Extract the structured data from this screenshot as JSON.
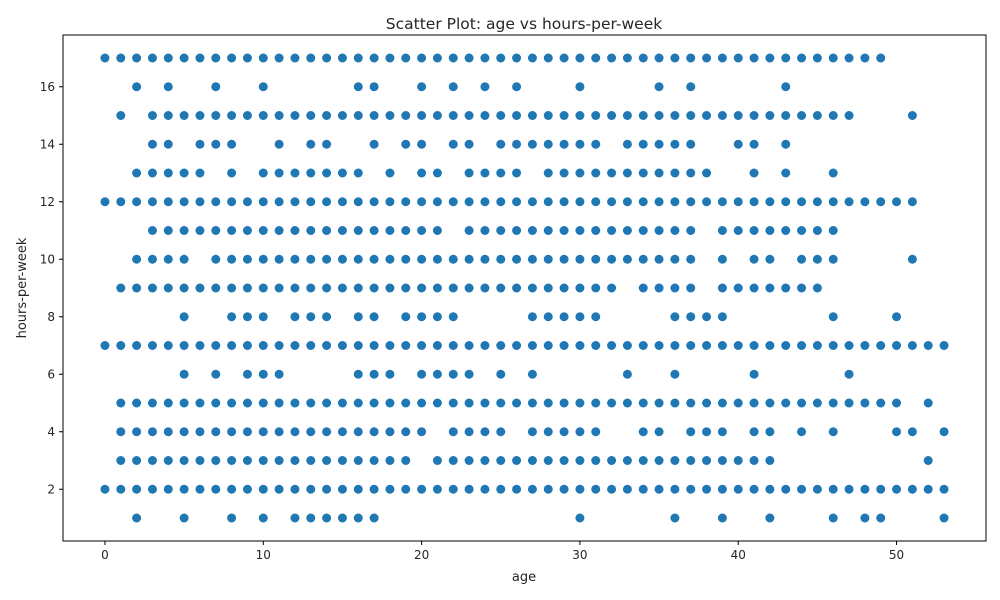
{
  "chart_data": {
    "type": "scatter",
    "title": "Scatter Plot: age vs hours-per-week",
    "xlabel": "age",
    "ylabel": "hours-per-week",
    "xlim": [
      -2.65,
      55.65
    ],
    "ylim": [
      0.2,
      17.8
    ],
    "xticks": [
      0,
      10,
      20,
      30,
      40,
      50
    ],
    "yticks": [
      2,
      4,
      6,
      8,
      10,
      12,
      14,
      16
    ],
    "grid": false,
    "legend": "none",
    "marker_color": "#1f77b4",
    "points": [
      {
        "y": 17,
        "x": [
          0,
          1,
          2,
          3,
          4,
          5,
          6,
          7,
          8,
          9,
          10,
          11,
          12,
          13,
          14,
          15,
          16,
          17,
          18,
          19,
          20,
          21,
          22,
          23,
          24,
          25,
          26,
          27,
          28,
          29,
          30,
          31,
          32,
          33,
          34,
          35,
          36,
          37,
          38,
          39,
          40,
          41,
          42,
          43,
          44,
          45,
          46,
          47,
          48,
          49
        ]
      },
      {
        "y": 16,
        "x": [
          2,
          4,
          7,
          10,
          16,
          17,
          20,
          22,
          24,
          26,
          30,
          35,
          37,
          43
        ]
      },
      {
        "y": 15,
        "x": [
          1,
          3,
          4,
          5,
          6,
          7,
          8,
          9,
          10,
          11,
          12,
          13,
          14,
          15,
          16,
          17,
          18,
          19,
          20,
          21,
          22,
          23,
          24,
          25,
          26,
          27,
          28,
          29,
          30,
          31,
          32,
          33,
          34,
          35,
          36,
          37,
          38,
          39,
          40,
          41,
          42,
          43,
          44,
          45,
          46,
          47,
          51
        ]
      },
      {
        "y": 14,
        "x": [
          3,
          4,
          6,
          7,
          8,
          11,
          13,
          14,
          17,
          19,
          20,
          22,
          23,
          25,
          26,
          27,
          28,
          29,
          30,
          31,
          33,
          34,
          35,
          36,
          37,
          40,
          41,
          43
        ]
      },
      {
        "y": 13,
        "x": [
          2,
          3,
          4,
          5,
          6,
          8,
          10,
          11,
          12,
          13,
          14,
          15,
          16,
          18,
          20,
          21,
          23,
          24,
          25,
          26,
          28,
          29,
          30,
          31,
          32,
          33,
          34,
          35,
          36,
          37,
          38,
          41,
          43,
          46
        ]
      },
      {
        "y": 12,
        "x": [
          0,
          1,
          2,
          3,
          4,
          5,
          6,
          7,
          8,
          9,
          10,
          11,
          12,
          13,
          14,
          15,
          16,
          17,
          18,
          19,
          20,
          21,
          22,
          23,
          24,
          25,
          26,
          27,
          28,
          29,
          30,
          31,
          32,
          33,
          34,
          35,
          36,
          37,
          38,
          39,
          40,
          41,
          42,
          43,
          44,
          45,
          46,
          47,
          48,
          49,
          50,
          51
        ]
      },
      {
        "y": 11,
        "x": [
          3,
          4,
          5,
          6,
          7,
          8,
          9,
          10,
          11,
          12,
          13,
          14,
          15,
          16,
          17,
          18,
          19,
          20,
          21,
          23,
          24,
          25,
          26,
          27,
          28,
          29,
          30,
          31,
          32,
          33,
          34,
          35,
          36,
          37,
          39,
          40,
          41,
          42,
          43,
          44,
          45,
          46
        ]
      },
      {
        "y": 10,
        "x": [
          2,
          3,
          4,
          5,
          7,
          8,
          9,
          10,
          11,
          12,
          13,
          14,
          15,
          16,
          17,
          18,
          19,
          20,
          21,
          22,
          23,
          24,
          25,
          26,
          27,
          28,
          29,
          30,
          31,
          32,
          33,
          34,
          35,
          36,
          37,
          39,
          41,
          42,
          44,
          45,
          46,
          51
        ]
      },
      {
        "y": 9,
        "x": [
          1,
          2,
          3,
          4,
          5,
          6,
          7,
          8,
          9,
          10,
          11,
          12,
          13,
          14,
          15,
          16,
          17,
          18,
          19,
          20,
          21,
          22,
          23,
          24,
          25,
          26,
          27,
          28,
          29,
          30,
          31,
          32,
          34,
          35,
          36,
          37,
          39,
          40,
          41,
          42,
          43,
          44,
          45
        ]
      },
      {
        "y": 8,
        "x": [
          5,
          8,
          9,
          10,
          12,
          13,
          14,
          16,
          17,
          19,
          20,
          21,
          22,
          27,
          28,
          29,
          30,
          31,
          36,
          37,
          38,
          39,
          46,
          50
        ]
      },
      {
        "y": 7,
        "x": [
          0,
          1,
          2,
          3,
          4,
          5,
          6,
          7,
          8,
          9,
          10,
          11,
          12,
          13,
          14,
          15,
          16,
          17,
          18,
          19,
          20,
          21,
          22,
          23,
          24,
          25,
          26,
          27,
          28,
          29,
          30,
          31,
          32,
          33,
          34,
          35,
          36,
          37,
          38,
          39,
          40,
          41,
          42,
          43,
          44,
          45,
          46,
          47,
          48,
          49,
          50,
          51,
          52,
          53
        ]
      },
      {
        "y": 6,
        "x": [
          5,
          7,
          9,
          10,
          11,
          16,
          17,
          18,
          20,
          21,
          22,
          23,
          25,
          27,
          33,
          36,
          41,
          47
        ]
      },
      {
        "y": 5,
        "x": [
          1,
          2,
          3,
          4,
          5,
          6,
          7,
          8,
          9,
          10,
          11,
          12,
          13,
          14,
          15,
          16,
          17,
          18,
          19,
          20,
          21,
          22,
          23,
          24,
          25,
          26,
          27,
          28,
          29,
          30,
          31,
          32,
          33,
          34,
          35,
          36,
          37,
          38,
          39,
          40,
          41,
          42,
          43,
          44,
          45,
          46,
          47,
          48,
          49,
          50,
          52
        ]
      },
      {
        "y": 4,
        "x": [
          1,
          2,
          3,
          4,
          5,
          6,
          7,
          8,
          9,
          10,
          11,
          12,
          13,
          14,
          15,
          16,
          17,
          18,
          19,
          20,
          22,
          23,
          24,
          25,
          27,
          28,
          29,
          30,
          31,
          34,
          35,
          37,
          38,
          39,
          41,
          42,
          44,
          46,
          50,
          51,
          53
        ]
      },
      {
        "y": 3,
        "x": [
          1,
          2,
          3,
          4,
          5,
          6,
          7,
          8,
          9,
          10,
          11,
          12,
          13,
          14,
          15,
          16,
          17,
          18,
          19,
          21,
          22,
          23,
          24,
          25,
          26,
          27,
          28,
          29,
          30,
          31,
          32,
          33,
          34,
          35,
          36,
          37,
          38,
          39,
          40,
          41,
          42,
          52
        ]
      },
      {
        "y": 2,
        "x": [
          0,
          1,
          2,
          3,
          4,
          5,
          6,
          7,
          8,
          9,
          10,
          11,
          12,
          13,
          14,
          15,
          16,
          17,
          18,
          19,
          20,
          21,
          22,
          23,
          24,
          25,
          26,
          27,
          28,
          29,
          30,
          31,
          32,
          33,
          34,
          35,
          36,
          37,
          38,
          39,
          40,
          41,
          42,
          43,
          44,
          45,
          46,
          47,
          48,
          49,
          50,
          51,
          52,
          53
        ]
      },
      {
        "y": 1,
        "x": [
          2,
          5,
          8,
          10,
          12,
          13,
          14,
          15,
          16,
          17,
          30,
          36,
          39,
          42,
          46,
          48,
          49,
          53
        ]
      }
    ]
  }
}
